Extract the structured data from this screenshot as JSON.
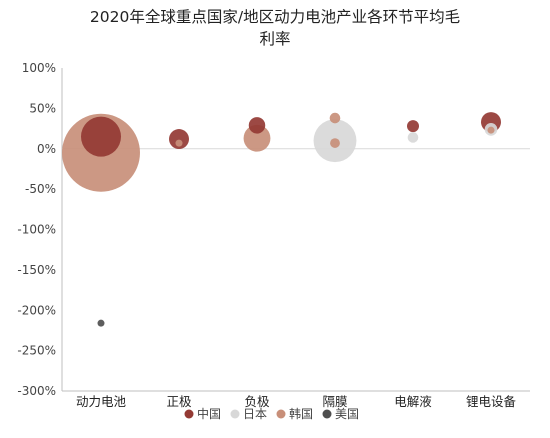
{
  "chart_data": {
    "type": "bubble",
    "title_lines": [
      "2020年全球重点国家/地区动力电池产业各环节平均毛",
      "利率"
    ],
    "categories": [
      "动力电池",
      "正极",
      "负极",
      "隔膜",
      "电解液",
      "锂电设备"
    ],
    "y_tick_labels": [
      "100%",
      "50%",
      "0%",
      "-50%",
      "-100%",
      "-150%",
      "-200%",
      "-250%",
      "-300%"
    ],
    "ylim": [
      -300,
      100
    ],
    "y_unit": "%",
    "grid": false,
    "legend_position": "bottom",
    "series": [
      {
        "name": "中国",
        "color": "#943a34",
        "points": [
          {
            "category": "动力电池",
            "y": 15,
            "size": 100
          },
          {
            "category": "正极",
            "y": 12,
            "size": 25
          },
          {
            "category": "负极",
            "y": 29,
            "size": 17
          },
          {
            "category": "电解液",
            "y": 28,
            "size": 9
          },
          {
            "category": "锂电设备",
            "y": 33,
            "size": 25
          }
        ]
      },
      {
        "name": "日本",
        "color": "#d8d8d8",
        "points": [
          {
            "category": "隔膜",
            "y": 10,
            "size": 115
          },
          {
            "category": "电解液",
            "y": 14,
            "size": 7
          },
          {
            "category": "锂电设备",
            "y": 24,
            "size": 10
          }
        ]
      },
      {
        "name": "韩国",
        "color": "#c88f79",
        "points": [
          {
            "category": "动力电池",
            "y": -5,
            "size": 380
          },
          {
            "category": "正极",
            "y": 7,
            "size": 3
          },
          {
            "category": "负极",
            "y": 13,
            "size": 45
          },
          {
            "category": "隔膜",
            "y": 7,
            "size": 6
          },
          {
            "category": "隔膜",
            "y": 38,
            "size": 7
          },
          {
            "category": "锂电设备",
            "y": 23,
            "size": 2
          }
        ]
      },
      {
        "name": "美国",
        "color": "#4f4f4f",
        "points": [
          {
            "category": "动力电池",
            "y": -216,
            "size": 2
          }
        ]
      }
    ]
  }
}
